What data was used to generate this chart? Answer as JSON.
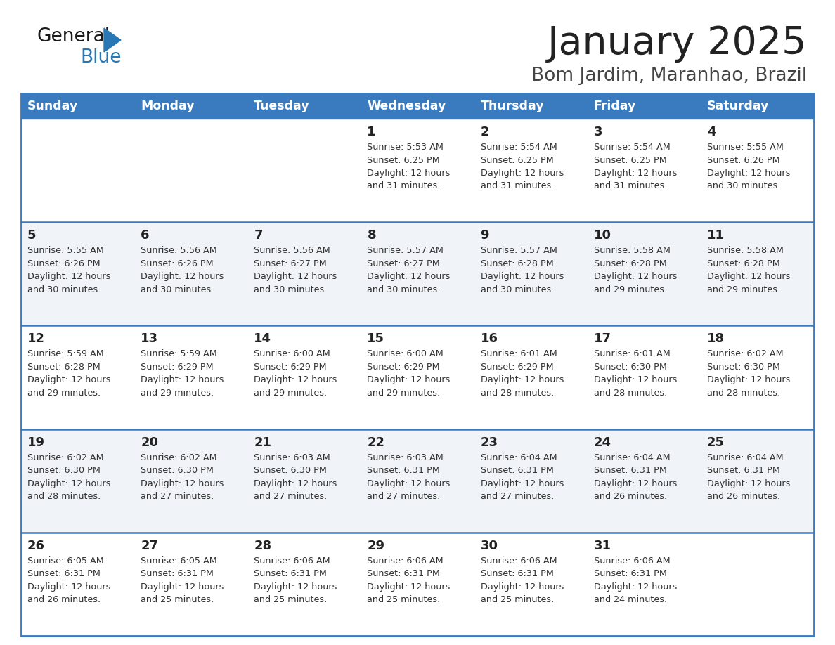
{
  "title": "January 2025",
  "subtitle": "Bom Jardim, Maranhao, Brazil",
  "days_of_week": [
    "Sunday",
    "Monday",
    "Tuesday",
    "Wednesday",
    "Thursday",
    "Friday",
    "Saturday"
  ],
  "header_bg": "#3a7abf",
  "header_text": "#ffffff",
  "row_bg": [
    "#ffffff",
    "#f0f4f8",
    "#ffffff",
    "#f0f4f8",
    "#ffffff"
  ],
  "border_color": "#3a7abf",
  "sep_color": "#5a9fd4",
  "title_color": "#222222",
  "subtitle_color": "#444444",
  "day_number_color": "#222222",
  "cell_text_color": "#333333",
  "logo_general_color": "#1a1a1a",
  "logo_blue_color": "#2778b5",
  "calendar_data": [
    [
      null,
      null,
      null,
      {
        "day": 1,
        "sunrise": "5:53 AM",
        "sunset": "6:25 PM",
        "daylight_suffix": "31 minutes."
      },
      {
        "day": 2,
        "sunrise": "5:54 AM",
        "sunset": "6:25 PM",
        "daylight_suffix": "31 minutes."
      },
      {
        "day": 3,
        "sunrise": "5:54 AM",
        "sunset": "6:25 PM",
        "daylight_suffix": "31 minutes."
      },
      {
        "day": 4,
        "sunrise": "5:55 AM",
        "sunset": "6:26 PM",
        "daylight_suffix": "30 minutes."
      }
    ],
    [
      {
        "day": 5,
        "sunrise": "5:55 AM",
        "sunset": "6:26 PM",
        "daylight_suffix": "30 minutes."
      },
      {
        "day": 6,
        "sunrise": "5:56 AM",
        "sunset": "6:26 PM",
        "daylight_suffix": "30 minutes."
      },
      {
        "day": 7,
        "sunrise": "5:56 AM",
        "sunset": "6:27 PM",
        "daylight_suffix": "30 minutes."
      },
      {
        "day": 8,
        "sunrise": "5:57 AM",
        "sunset": "6:27 PM",
        "daylight_suffix": "30 minutes."
      },
      {
        "day": 9,
        "sunrise": "5:57 AM",
        "sunset": "6:28 PM",
        "daylight_suffix": "30 minutes."
      },
      {
        "day": 10,
        "sunrise": "5:58 AM",
        "sunset": "6:28 PM",
        "daylight_suffix": "29 minutes."
      },
      {
        "day": 11,
        "sunrise": "5:58 AM",
        "sunset": "6:28 PM",
        "daylight_suffix": "29 minutes."
      }
    ],
    [
      {
        "day": 12,
        "sunrise": "5:59 AM",
        "sunset": "6:28 PM",
        "daylight_suffix": "29 minutes."
      },
      {
        "day": 13,
        "sunrise": "5:59 AM",
        "sunset": "6:29 PM",
        "daylight_suffix": "29 minutes."
      },
      {
        "day": 14,
        "sunrise": "6:00 AM",
        "sunset": "6:29 PM",
        "daylight_suffix": "29 minutes."
      },
      {
        "day": 15,
        "sunrise": "6:00 AM",
        "sunset": "6:29 PM",
        "daylight_suffix": "29 minutes."
      },
      {
        "day": 16,
        "sunrise": "6:01 AM",
        "sunset": "6:29 PM",
        "daylight_suffix": "28 minutes."
      },
      {
        "day": 17,
        "sunrise": "6:01 AM",
        "sunset": "6:30 PM",
        "daylight_suffix": "28 minutes."
      },
      {
        "day": 18,
        "sunrise": "6:02 AM",
        "sunset": "6:30 PM",
        "daylight_suffix": "28 minutes."
      }
    ],
    [
      {
        "day": 19,
        "sunrise": "6:02 AM",
        "sunset": "6:30 PM",
        "daylight_suffix": "28 minutes."
      },
      {
        "day": 20,
        "sunrise": "6:02 AM",
        "sunset": "6:30 PM",
        "daylight_suffix": "27 minutes."
      },
      {
        "day": 21,
        "sunrise": "6:03 AM",
        "sunset": "6:30 PM",
        "daylight_suffix": "27 minutes."
      },
      {
        "day": 22,
        "sunrise": "6:03 AM",
        "sunset": "6:31 PM",
        "daylight_suffix": "27 minutes."
      },
      {
        "day": 23,
        "sunrise": "6:04 AM",
        "sunset": "6:31 PM",
        "daylight_suffix": "27 minutes."
      },
      {
        "day": 24,
        "sunrise": "6:04 AM",
        "sunset": "6:31 PM",
        "daylight_suffix": "26 minutes."
      },
      {
        "day": 25,
        "sunrise": "6:04 AM",
        "sunset": "6:31 PM",
        "daylight_suffix": "26 minutes."
      }
    ],
    [
      {
        "day": 26,
        "sunrise": "6:05 AM",
        "sunset": "6:31 PM",
        "daylight_suffix": "26 minutes."
      },
      {
        "day": 27,
        "sunrise": "6:05 AM",
        "sunset": "6:31 PM",
        "daylight_suffix": "25 minutes."
      },
      {
        "day": 28,
        "sunrise": "6:06 AM",
        "sunset": "6:31 PM",
        "daylight_suffix": "25 minutes."
      },
      {
        "day": 29,
        "sunrise": "6:06 AM",
        "sunset": "6:31 PM",
        "daylight_suffix": "25 minutes."
      },
      {
        "day": 30,
        "sunrise": "6:06 AM",
        "sunset": "6:31 PM",
        "daylight_suffix": "25 minutes."
      },
      {
        "day": 31,
        "sunrise": "6:06 AM",
        "sunset": "6:31 PM",
        "daylight_suffix": "24 minutes."
      },
      null
    ]
  ]
}
